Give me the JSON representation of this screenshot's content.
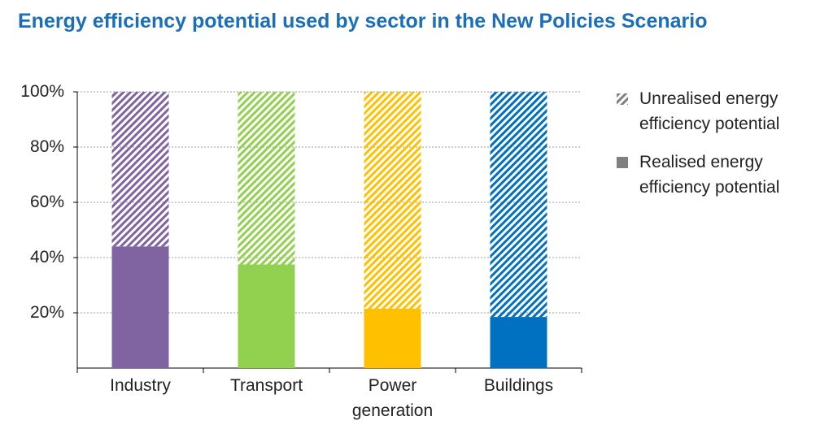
{
  "chart_data": {
    "type": "stacked_bar",
    "title": "Energy efficiency potential used by sector in the New Policies Scenario",
    "categories": [
      "Industry",
      "Transport",
      "Power generation",
      "Buildings"
    ],
    "colors": [
      "#8064a2",
      "#92d050",
      "#ffc000",
      "#0070c0"
    ],
    "legend_color": "#808080",
    "series": [
      {
        "name": "Realised energy efficiency potential",
        "pattern": "solid",
        "values": [
          44,
          37.5,
          21.5,
          18.5
        ]
      },
      {
        "name": "Unrealised energy efficiency potential",
        "pattern": "hatch",
        "values": [
          56,
          62.5,
          78.5,
          81.5
        ]
      }
    ],
    "ylim": [
      0,
      100
    ],
    "yticks": [
      {
        "value": 20,
        "label": "20%"
      },
      {
        "value": 40,
        "label": "40%"
      },
      {
        "value": 60,
        "label": "60%"
      },
      {
        "value": 80,
        "label": "80%"
      },
      {
        "value": 100,
        "label": "100%"
      }
    ],
    "grid": true,
    "legend": "right"
  }
}
